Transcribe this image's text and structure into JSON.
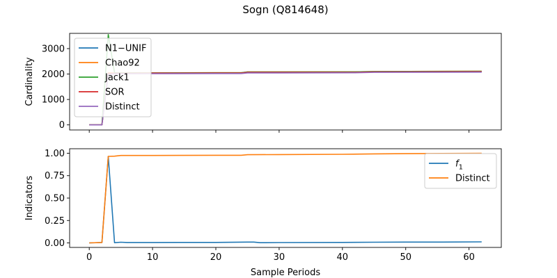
{
  "figure": {
    "title": "Sogn (Q814648)",
    "xlabel": "Sample Periods"
  },
  "colors": {
    "blue": "#1f77b4",
    "orange": "#ff7f0e",
    "green": "#2ca02c",
    "red": "#d62728",
    "purple": "#9467bd"
  },
  "chart_data": [
    {
      "type": "line",
      "ylabel": "Cardinality",
      "xlim": [
        -3.1,
        65.1
      ],
      "ylim": [
        -200,
        3600
      ],
      "xticks": [
        0,
        10,
        20,
        30,
        40,
        50,
        60
      ],
      "yticks": [
        0,
        1000,
        2000,
        3000
      ],
      "ytick_labels": [
        "0",
        "1000",
        "2000",
        "3000"
      ],
      "show_xtick_labels": false,
      "legend": "top-left",
      "series": [
        {
          "name": "N1−UNIF",
          "color": "blue",
          "x": [
            0,
            2,
            3,
            4,
            10,
            20,
            24,
            25,
            30,
            42,
            45,
            62
          ],
          "y": [
            0,
            0,
            2020,
            2035,
            2040,
            2045,
            2045,
            2070,
            2070,
            2075,
            2090,
            2100
          ]
        },
        {
          "name": "Chao92",
          "color": "orange",
          "x": [
            0,
            2,
            3,
            4,
            10,
            20,
            24,
            25,
            30,
            42,
            45,
            62
          ],
          "y": [
            0,
            0,
            2050,
            2040,
            2045,
            2050,
            2050,
            2080,
            2080,
            2085,
            2100,
            2110
          ]
        },
        {
          "name": "Jack1",
          "color": "green",
          "x": [
            0,
            2,
            3,
            4,
            10,
            20,
            24,
            25,
            30,
            42,
            45,
            62
          ],
          "y": [
            0,
            0,
            3550,
            2050,
            2045,
            2050,
            2050,
            2080,
            2080,
            2085,
            2100,
            2110
          ]
        },
        {
          "name": "SOR",
          "color": "red",
          "x": [
            0,
            2,
            3,
            4,
            10,
            20,
            24,
            25,
            30,
            42,
            45,
            62
          ],
          "y": [
            0,
            0,
            2020,
            2030,
            2035,
            2040,
            2040,
            2065,
            2065,
            2070,
            2085,
            2095
          ]
        },
        {
          "name": "Distinct",
          "color": "purple",
          "x": [
            0,
            2,
            3,
            4,
            10,
            20,
            24,
            25,
            30,
            42,
            45,
            62
          ],
          "y": [
            0,
            0,
            1980,
            2010,
            2015,
            2020,
            2020,
            2045,
            2045,
            2050,
            2065,
            2075
          ]
        }
      ]
    },
    {
      "type": "line",
      "ylabel": "Indicators",
      "xlim": [
        -3.1,
        65.1
      ],
      "ylim": [
        -0.05,
        1.05
      ],
      "xticks": [
        0,
        10,
        20,
        30,
        40,
        50,
        60
      ],
      "yticks": [
        0.0,
        0.25,
        0.5,
        0.75,
        1.0
      ],
      "ytick_labels": [
        "0.00",
        "0.25",
        "0.50",
        "0.75",
        "1.00"
      ],
      "show_xtick_labels": true,
      "legend": "top-right",
      "series": [
        {
          "name": "f1",
          "name_base": "f",
          "name_sub": "1",
          "color": "blue",
          "x": [
            0,
            2,
            3,
            4,
            5,
            6,
            10,
            20,
            25,
            26,
            27,
            30,
            40,
            45,
            50,
            55,
            62
          ],
          "y": [
            0.0,
            0.005,
            0.965,
            0.003,
            0.008,
            0.005,
            0.005,
            0.006,
            0.01,
            0.01,
            0.003,
            0.004,
            0.006,
            0.008,
            0.01,
            0.01,
            0.012
          ]
        },
        {
          "name": "Distinct",
          "color": "orange",
          "x": [
            0,
            2,
            3,
            4,
            5,
            10,
            20,
            24,
            25,
            30,
            40,
            45,
            50,
            62
          ],
          "y": [
            0.0,
            0.005,
            0.965,
            0.967,
            0.975,
            0.975,
            0.977,
            0.977,
            0.983,
            0.985,
            0.988,
            0.993,
            0.995,
            1.0
          ]
        }
      ]
    }
  ]
}
